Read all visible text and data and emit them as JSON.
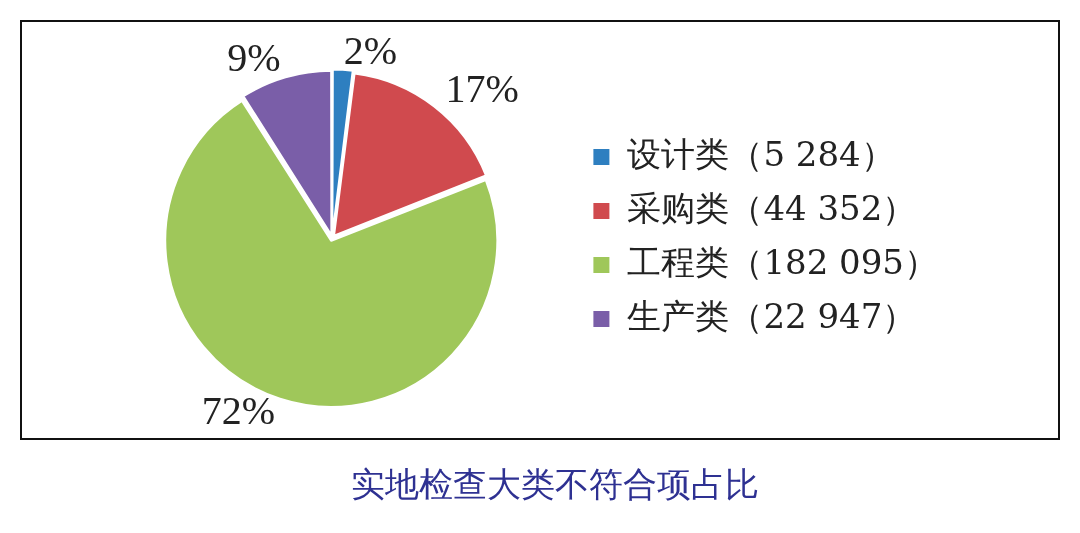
{
  "chart_data": {
    "type": "pie",
    "title": "实地检查大类不符合项占比",
    "categories": [
      "设计类（5 284）",
      "采购类（44 352）",
      "工程类（182 095）",
      "生产类（22 947）"
    ],
    "values": [
      2,
      17,
      72,
      9
    ],
    "value_labels": [
      "2%",
      "17%",
      "72%",
      "9%"
    ],
    "colors": [
      "#2e7fc0",
      "#d04a4e",
      "#9fc75a",
      "#7a5ea8"
    ],
    "legend": "right"
  }
}
